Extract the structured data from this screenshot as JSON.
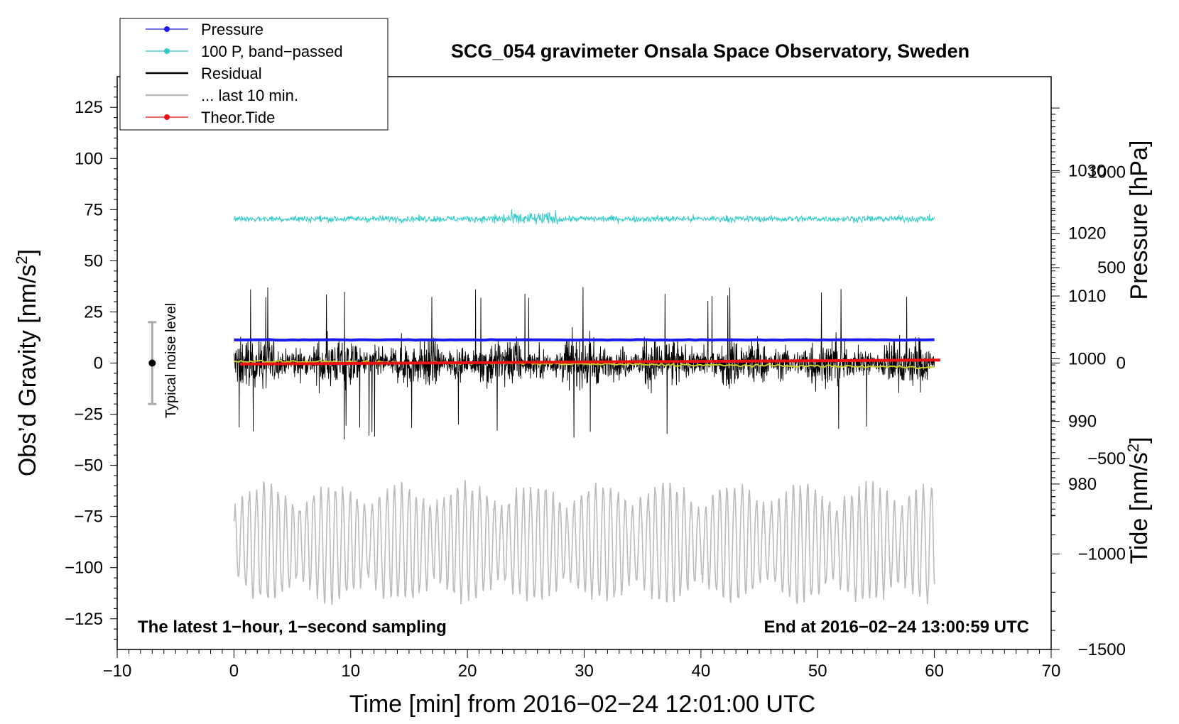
{
  "chart_data": {
    "type": "line",
    "title": "SCG_054 gravimeter Onsala Space Observatory, Sweden",
    "xlabel": "Time [min] from 2016−02−24 12:01:00 UTC",
    "ylabel_prefix": "Obs’d Gravity [nm/s",
    "ylabel_suffix": "]",
    "ylabel_sup": "2",
    "xlim": [
      -10,
      70
    ],
    "ylim": [
      -140,
      140
    ],
    "xticks": [
      -10,
      0,
      10,
      20,
      30,
      40,
      50,
      60,
      70
    ],
    "xtick_labels": [
      "−10",
      "0",
      "10",
      "20",
      "30",
      "40",
      "50",
      "60",
      "70"
    ],
    "yticks": [
      125,
      100,
      75,
      50,
      25,
      0,
      -25,
      -50,
      -75,
      -100,
      -125
    ],
    "ytick_labels": [
      "125",
      "100",
      "75",
      "50",
      "25",
      "0",
      "−25",
      "−50",
      "−75",
      "−100",
      "−125"
    ],
    "pressure_axis": {
      "label": "Pressure [hPa]",
      "ticks": [
        1030,
        1020,
        1010,
        1000,
        990,
        980
      ],
      "tick_labels": [
        "1030",
        "1020",
        "1010",
        "1000",
        "990",
        "980"
      ],
      "range": [
        953.6,
        1045
      ]
    },
    "tide_axis": {
      "label_prefix": "Tide [nm/s",
      "label_suffix": "]",
      "label_sup": "2",
      "ticks": [
        1000,
        500,
        0,
        -500,
        -1000,
        -1500
      ],
      "tick_labels": [
        "1000",
        "500",
        "0",
        "−500",
        "−1000",
        "−1500"
      ],
      "range": [
        -1500,
        1500
      ]
    },
    "legend": {
      "position": "top-left",
      "entries": [
        {
          "label": "Pressure",
          "color": "#1a1aee",
          "marker": true
        },
        {
          "label": "100 P, band−passed",
          "color": "#33cccc",
          "marker": true
        },
        {
          "label": "Residual",
          "color": "#000000",
          "marker": false
        },
        {
          "label": "... last 10 min.",
          "color": "#bbbbbb",
          "marker": false
        },
        {
          "label": "Theor.Tide",
          "color": "#ee1111",
          "marker": true
        }
      ]
    },
    "series": [
      {
        "name": "Pressure",
        "color": "#1a1aee",
        "x_range": [
          0,
          60
        ],
        "level_hpa": 1003.0
      },
      {
        "name": "100 P, band−passed",
        "color": "#33cccc",
        "x_range": [
          0,
          60
        ],
        "level": 70.5,
        "amplitude": 7
      },
      {
        "name": "Residual",
        "color": "#000000",
        "x_range": [
          0,
          60
        ],
        "level": 0,
        "amplitude": 30
      },
      {
        "name": "Residual smoothed",
        "color": "#cccc22",
        "x_range": [
          0,
          60
        ],
        "start": 1,
        "end": -2
      },
      {
        "name": "... last 10 min.",
        "color": "#bbbbbb",
        "x_range": [
          0,
          60
        ],
        "level": -88,
        "amplitude": 25
      },
      {
        "name": "Theor.Tide",
        "color": "#ee1111",
        "x_range": [
          0.5,
          60.5
        ],
        "tide_start": -5,
        "tide_end": 16
      }
    ],
    "noise_level": {
      "label": "Typical noise level",
      "x": -7,
      "center": 0,
      "half_width": 20
    },
    "annotations": {
      "left": "The latest 1−hour, 1−second sampling",
      "right": "End at 2016−02−24 13:00:59 UTC"
    }
  }
}
